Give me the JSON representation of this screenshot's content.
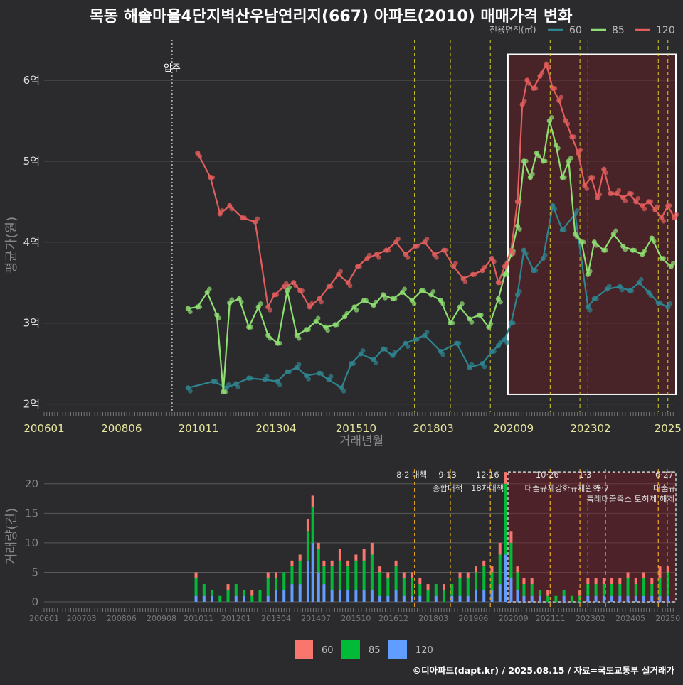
{
  "chart_data": [
    {
      "type": "line",
      "title": "목동 해솔마을4단지벽산우남연리지(667) 아파트(2010) 매매가격 변화",
      "xlabel": "거래년월",
      "ylabel": "평균가(원)",
      "legend_title": "전용면적(㎡)",
      "legend_position": "top-right",
      "ylim": [
        1.9,
        6.5
      ],
      "xlim": [
        2006.0,
        2025.75
      ],
      "y_ticks": [
        {
          "v": 2,
          "label": "2억"
        },
        {
          "v": 3,
          "label": "3억"
        },
        {
          "v": 4,
          "label": "4억"
        },
        {
          "v": 5,
          "label": "5억"
        },
        {
          "v": 6,
          "label": "6억"
        }
      ],
      "x_ticks": [
        {
          "v": 2006.0,
          "label": "200601"
        },
        {
          "v": 2008.42,
          "label": "200806"
        },
        {
          "v": 2010.83,
          "label": "201011"
        },
        {
          "v": 2013.25,
          "label": "201304"
        },
        {
          "v": 2015.75,
          "label": "201510"
        },
        {
          "v": 2018.17,
          "label": "201803"
        },
        {
          "v": 2020.67,
          "label": "202009"
        },
        {
          "v": 2023.08,
          "label": "202302"
        },
        {
          "v": 2025.5,
          "label": "2025"
        }
      ],
      "event_lines": [
        {
          "x": 2010.0,
          "label": "입주",
          "style": "move-in"
        },
        {
          "x": 2017.58,
          "label": "",
          "style": "policy"
        },
        {
          "x": 2018.7,
          "label": "",
          "style": "policy"
        },
        {
          "x": 2019.95,
          "label": "",
          "style": "policy"
        },
        {
          "x": 2021.82,
          "label": "",
          "style": "policy"
        },
        {
          "x": 2022.75,
          "label": "",
          "style": "policy"
        },
        {
          "x": 2023.0,
          "label": "",
          "style": "policy"
        },
        {
          "x": 2025.2,
          "label": "",
          "style": "policy"
        },
        {
          "x": 2025.5,
          "label": "",
          "style": "policy"
        }
      ],
      "highlight_box": {
        "x0": 2020.5,
        "x1": 2025.75,
        "y0": 2.12,
        "y1": 6.32
      },
      "series": [
        {
          "name": "60",
          "color": "#2e8590",
          "x": [
            2010.5,
            2011.3,
            2011.7,
            2012.0,
            2012.4,
            2012.9,
            2013.3,
            2013.6,
            2013.9,
            2014.2,
            2014.6,
            2014.9,
            2015.3,
            2015.6,
            2015.9,
            2016.3,
            2016.6,
            2016.9,
            2017.3,
            2017.6,
            2017.9,
            2018.4,
            2018.9,
            2019.3,
            2019.7,
            2020.0,
            2020.2,
            2020.4,
            2020.6,
            2020.8,
            2021.0,
            2021.3,
            2021.6,
            2021.9,
            2022.2,
            2022.6,
            2023.0,
            2023.2,
            2023.6,
            2024.0,
            2024.3,
            2024.6,
            2024.9,
            2025.2,
            2025.5
          ],
          "y": [
            2.2,
            2.28,
            2.2,
            2.25,
            2.32,
            2.3,
            2.28,
            2.4,
            2.45,
            2.35,
            2.38,
            2.3,
            2.2,
            2.5,
            2.62,
            2.55,
            2.68,
            2.6,
            2.75,
            2.8,
            2.85,
            2.65,
            2.75,
            2.45,
            2.5,
            2.65,
            2.72,
            2.8,
            3.0,
            3.35,
            3.9,
            3.65,
            3.8,
            4.45,
            4.15,
            4.35,
            3.2,
            3.3,
            3.42,
            3.45,
            3.4,
            3.5,
            3.38,
            3.25,
            3.2
          ]
        },
        {
          "name": "85",
          "color": "#8ede72",
          "x": [
            2010.5,
            2010.8,
            2011.1,
            2011.4,
            2011.6,
            2011.8,
            2012.1,
            2012.4,
            2012.7,
            2013.0,
            2013.3,
            2013.6,
            2013.9,
            2014.2,
            2014.5,
            2014.8,
            2015.1,
            2015.4,
            2015.7,
            2016.0,
            2016.3,
            2016.6,
            2016.9,
            2017.2,
            2017.5,
            2017.8,
            2018.1,
            2018.4,
            2018.7,
            2019.0,
            2019.3,
            2019.6,
            2019.9,
            2020.2,
            2020.4,
            2020.6,
            2020.8,
            2021.0,
            2021.2,
            2021.4,
            2021.6,
            2021.8,
            2022.0,
            2022.2,
            2022.4,
            2022.6,
            2022.8,
            2023.0,
            2023.2,
            2023.5,
            2023.8,
            2024.1,
            2024.4,
            2024.7,
            2025.0,
            2025.3,
            2025.6
          ],
          "y": [
            3.18,
            3.2,
            3.38,
            3.1,
            2.15,
            3.25,
            3.3,
            2.95,
            3.2,
            2.85,
            2.75,
            3.4,
            2.85,
            2.92,
            3.02,
            2.95,
            2.98,
            3.08,
            3.2,
            3.28,
            3.22,
            3.35,
            3.3,
            3.38,
            3.28,
            3.4,
            3.35,
            3.28,
            3.0,
            3.2,
            3.05,
            3.1,
            2.95,
            3.3,
            3.6,
            3.85,
            4.2,
            5.0,
            4.8,
            5.1,
            5.0,
            5.5,
            5.2,
            4.8,
            5.0,
            4.1,
            4.0,
            3.6,
            4.0,
            3.9,
            4.1,
            3.95,
            3.9,
            3.85,
            4.05,
            3.8,
            3.7
          ]
        },
        {
          "name": "120",
          "color": "#e35d5d",
          "x": [
            2010.8,
            2011.2,
            2011.5,
            2011.8,
            2012.2,
            2012.6,
            2013.0,
            2013.2,
            2013.5,
            2013.8,
            2014.0,
            2014.3,
            2014.6,
            2014.9,
            2015.2,
            2015.5,
            2015.8,
            2016.1,
            2016.4,
            2016.7,
            2017.0,
            2017.3,
            2017.6,
            2017.9,
            2018.2,
            2018.5,
            2018.8,
            2019.1,
            2019.4,
            2019.7,
            2020.0,
            2020.2,
            2020.4,
            2020.6,
            2020.8,
            2020.95,
            2021.1,
            2021.3,
            2021.5,
            2021.7,
            2021.9,
            2022.1,
            2022.3,
            2022.5,
            2022.7,
            2022.9,
            2023.1,
            2023.3,
            2023.5,
            2023.7,
            2023.9,
            2024.1,
            2024.3,
            2024.5,
            2024.7,
            2024.9,
            2025.1,
            2025.3,
            2025.5,
            2025.7
          ],
          "y": [
            5.1,
            4.8,
            4.35,
            4.45,
            4.3,
            4.25,
            3.2,
            3.35,
            3.45,
            3.5,
            3.4,
            3.2,
            3.3,
            3.45,
            3.6,
            3.5,
            3.7,
            3.8,
            3.85,
            3.9,
            4.0,
            3.85,
            3.95,
            4.0,
            3.85,
            3.9,
            3.7,
            3.55,
            3.6,
            3.65,
            3.8,
            3.5,
            3.7,
            3.9,
            4.5,
            5.7,
            6.0,
            5.9,
            6.05,
            6.2,
            5.9,
            5.75,
            5.5,
            5.3,
            5.1,
            4.7,
            4.8,
            4.55,
            4.9,
            4.6,
            4.6,
            4.55,
            4.6,
            4.5,
            4.45,
            4.5,
            4.4,
            4.3,
            4.45,
            4.3
          ]
        }
      ]
    },
    {
      "type": "bar",
      "stacked": true,
      "ylabel": "거래량(건)",
      "ylim": [
        0,
        22.5
      ],
      "xlim": [
        2006.0,
        2025.75
      ],
      "y_ticks": [
        0,
        5,
        10,
        15,
        20
      ],
      "x_ticks": [
        {
          "v": 2006.0,
          "label": "200601"
        },
        {
          "v": 2007.17,
          "label": "200703"
        },
        {
          "v": 2008.42,
          "label": "200806"
        },
        {
          "v": 2009.67,
          "label": "200908"
        },
        {
          "v": 2010.83,
          "label": "201011"
        },
        {
          "v": 2012.0,
          "label": "201201"
        },
        {
          "v": 2013.25,
          "label": "201304"
        },
        {
          "v": 2014.5,
          "label": "201407"
        },
        {
          "v": 2015.75,
          "label": "201510"
        },
        {
          "v": 2016.92,
          "label": "201612"
        },
        {
          "v": 2018.17,
          "label": "201803"
        },
        {
          "v": 2019.42,
          "label": "201906"
        },
        {
          "v": 2020.67,
          "label": "202009"
        },
        {
          "v": 2021.83,
          "label": "202111"
        },
        {
          "v": 2023.08,
          "label": "202302"
        },
        {
          "v": 2024.33,
          "label": "202405"
        },
        {
          "v": 2025.5,
          "label": "20250"
        }
      ],
      "policy_lines": [
        {
          "x": 2017.58,
          "date": "8·2 대책",
          "desc": ""
        },
        {
          "x": 2018.7,
          "date": "9·13",
          "desc": "종합대책"
        },
        {
          "x": 2019.95,
          "date": "12·16",
          "desc": "18차대책"
        },
        {
          "x": 2021.82,
          "date": "10·26",
          "desc": "대출규제강화"
        },
        {
          "x": 2022.75,
          "date": "",
          "desc": ""
        },
        {
          "x": 2023.0,
          "date": "1·3",
          "desc": "규제완화"
        },
        {
          "x": 2023.55,
          "date": "",
          "desc": "9·7"
        },
        {
          "x": 2025.2,
          "date": "",
          "desc": ""
        },
        {
          "x": 2025.48,
          "date": "6·27",
          "desc": "대출규"
        }
      ],
      "extra_annotation": "특례대출축소 토허제 해제",
      "highlight_box": {
        "x0": 2020.5,
        "x1": 2025.75,
        "y0": 0,
        "y1": 22
      },
      "series": [
        {
          "name": "60",
          "color": "#f8766d"
        },
        {
          "name": "85",
          "color": "#00ba38"
        },
        {
          "name": "120",
          "color": "#619cff"
        }
      ],
      "monthly": [
        {
          "x": 2010.75,
          "v": [
            1,
            3,
            1
          ]
        },
        {
          "x": 2011.0,
          "v": [
            0,
            2,
            1
          ]
        },
        {
          "x": 2011.25,
          "v": [
            0,
            1,
            1
          ]
        },
        {
          "x": 2011.5,
          "v": [
            0,
            1,
            0
          ]
        },
        {
          "x": 2011.75,
          "v": [
            1,
            2,
            0
          ]
        },
        {
          "x": 2012.0,
          "v": [
            0,
            2,
            1
          ]
        },
        {
          "x": 2012.25,
          "v": [
            0,
            1,
            1
          ]
        },
        {
          "x": 2012.5,
          "v": [
            1,
            1,
            0
          ]
        },
        {
          "x": 2012.75,
          "v": [
            0,
            2,
            0
          ]
        },
        {
          "x": 2013.0,
          "v": [
            1,
            3,
            1
          ]
        },
        {
          "x": 2013.25,
          "v": [
            1,
            2,
            2
          ]
        },
        {
          "x": 2013.5,
          "v": [
            0,
            3,
            2
          ]
        },
        {
          "x": 2013.75,
          "v": [
            1,
            3,
            3
          ]
        },
        {
          "x": 2014.0,
          "v": [
            1,
            4,
            3
          ]
        },
        {
          "x": 2014.25,
          "v": [
            2,
            5,
            7
          ]
        },
        {
          "x": 2014.4,
          "v": [
            2,
            6,
            10
          ]
        },
        {
          "x": 2014.58,
          "v": [
            1,
            4,
            5
          ]
        },
        {
          "x": 2014.75,
          "v": [
            1,
            3,
            3
          ]
        },
        {
          "x": 2015.0,
          "v": [
            1,
            4,
            2
          ]
        },
        {
          "x": 2015.25,
          "v": [
            2,
            5,
            2
          ]
        },
        {
          "x": 2015.5,
          "v": [
            1,
            4,
            2
          ]
        },
        {
          "x": 2015.75,
          "v": [
            1,
            5,
            2
          ]
        },
        {
          "x": 2016.0,
          "v": [
            2,
            5,
            2
          ]
        },
        {
          "x": 2016.25,
          "v": [
            2,
            6,
            2
          ]
        },
        {
          "x": 2016.5,
          "v": [
            1,
            4,
            1
          ]
        },
        {
          "x": 2016.75,
          "v": [
            1,
            3,
            1
          ]
        },
        {
          "x": 2017.0,
          "v": [
            1,
            4,
            2
          ]
        },
        {
          "x": 2017.25,
          "v": [
            1,
            3,
            1
          ]
        },
        {
          "x": 2017.5,
          "v": [
            1,
            3,
            1
          ]
        },
        {
          "x": 2017.75,
          "v": [
            1,
            2,
            1
          ]
        },
        {
          "x": 2018.0,
          "v": [
            1,
            2,
            0
          ]
        },
        {
          "x": 2018.25,
          "v": [
            0,
            2,
            1
          ]
        },
        {
          "x": 2018.5,
          "v": [
            1,
            2,
            0
          ]
        },
        {
          "x": 2018.75,
          "v": [
            0,
            2,
            1
          ]
        },
        {
          "x": 2019.0,
          "v": [
            1,
            3,
            1
          ]
        },
        {
          "x": 2019.25,
          "v": [
            1,
            3,
            1
          ]
        },
        {
          "x": 2019.5,
          "v": [
            1,
            3,
            2
          ]
        },
        {
          "x": 2019.75,
          "v": [
            1,
            4,
            2
          ]
        },
        {
          "x": 2020.0,
          "v": [
            1,
            3,
            2
          ]
        },
        {
          "x": 2020.25,
          "v": [
            2,
            5,
            3
          ]
        },
        {
          "x": 2020.42,
          "v": [
            2,
            12,
            8
          ]
        },
        {
          "x": 2020.6,
          "v": [
            2,
            6,
            4
          ]
        },
        {
          "x": 2020.8,
          "v": [
            1,
            3,
            2
          ]
        },
        {
          "x": 2021.0,
          "v": [
            1,
            2,
            1
          ]
        },
        {
          "x": 2021.25,
          "v": [
            1,
            2,
            1
          ]
        },
        {
          "x": 2021.5,
          "v": [
            0,
            1,
            1
          ]
        },
        {
          "x": 2021.75,
          "v": [
            1,
            1,
            0
          ]
        },
        {
          "x": 2022.0,
          "v": [
            0,
            1,
            0
          ]
        },
        {
          "x": 2022.25,
          "v": [
            0,
            1,
            1
          ]
        },
        {
          "x": 2022.5,
          "v": [
            0,
            1,
            0
          ]
        },
        {
          "x": 2022.75,
          "v": [
            1,
            1,
            0
          ]
        },
        {
          "x": 2023.0,
          "v": [
            1,
            2,
            1
          ]
        },
        {
          "x": 2023.25,
          "v": [
            1,
            2,
            1
          ]
        },
        {
          "x": 2023.5,
          "v": [
            1,
            2,
            1
          ]
        },
        {
          "x": 2023.75,
          "v": [
            1,
            2,
            1
          ]
        },
        {
          "x": 2024.0,
          "v": [
            1,
            2,
            1
          ]
        },
        {
          "x": 2024.25,
          "v": [
            1,
            3,
            1
          ]
        },
        {
          "x": 2024.5,
          "v": [
            1,
            2,
            1
          ]
        },
        {
          "x": 2024.75,
          "v": [
            1,
            3,
            1
          ]
        },
        {
          "x": 2025.0,
          "v": [
            1,
            2,
            1
          ]
        },
        {
          "x": 2025.25,
          "v": [
            2,
            3,
            1
          ]
        },
        {
          "x": 2025.5,
          "v": [
            1,
            4,
            1
          ]
        }
      ]
    }
  ],
  "legend_bottom": [
    "60",
    "85",
    "120"
  ],
  "footer": "©디아파트(dapt.kr) / 2025.08.15 / 자료=국토교통부 실거래가"
}
